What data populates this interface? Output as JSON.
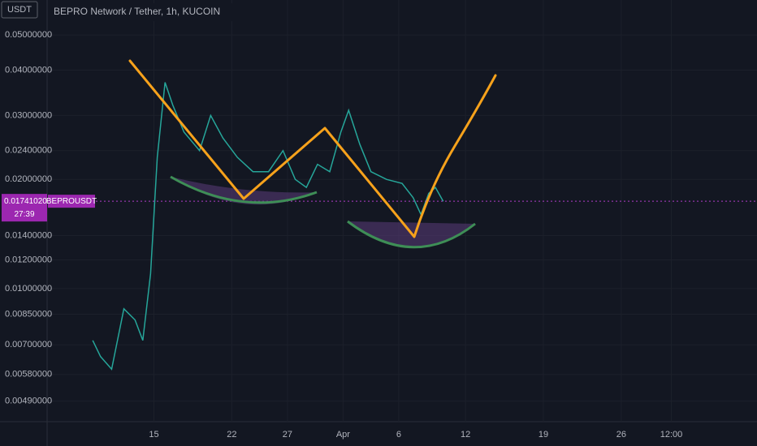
{
  "chart_data": {
    "type": "line",
    "title": "BEPRO Network / Tether, 1h, KUCOIN",
    "currency": "USDT",
    "log_scale": true,
    "color": "#26a69a",
    "x": [
      9.5,
      10.2,
      11.2,
      12.3,
      13.3,
      14.0,
      14.7,
      15.3,
      16.0,
      16.7,
      17.7,
      19.1,
      20.1,
      21.2,
      22.5,
      23.9,
      25.3,
      26.6,
      27.7,
      28.7,
      29.7,
      30.8,
      31.8,
      32.5,
      33.5,
      34.5,
      35.9,
      37.3,
      38.3,
      39.0,
      39.7,
      40.3,
      41.0
    ],
    "series": [
      {
        "name": "BEPROUSDT",
        "color": "#26a69a",
        "values": [
          0.0072,
          0.0065,
          0.006,
          0.0088,
          0.0082,
          0.0072,
          0.011,
          0.023,
          0.037,
          0.032,
          0.027,
          0.024,
          0.03,
          0.026,
          0.023,
          0.021,
          0.021,
          0.024,
          0.02,
          0.019,
          0.022,
          0.021,
          0.027,
          0.031,
          0.025,
          0.021,
          0.02,
          0.0195,
          0.0178,
          0.016,
          0.0183,
          0.019,
          0.0174
        ]
      }
    ],
    "ylim": [
      0.0043,
      0.0624
    ],
    "yticks": [
      {
        "value": 0.05,
        "label": "0.05000000"
      },
      {
        "value": 0.04,
        "label": "0.04000000"
      },
      {
        "value": 0.03,
        "label": "0.03000000"
      },
      {
        "value": 0.024,
        "label": "0.02400000"
      },
      {
        "value": 0.02,
        "label": "0.02000000"
      },
      {
        "value": 0.014,
        "label": "0.01400000"
      },
      {
        "value": 0.012,
        "label": "0.01200000"
      },
      {
        "value": 0.01,
        "label": "0.01000000"
      },
      {
        "value": 0.0085,
        "label": "0.00850000"
      },
      {
        "value": 0.007,
        "label": "0.00700000"
      },
      {
        "value": 0.0058,
        "label": "0.00580000"
      },
      {
        "value": 0.0049,
        "label": "0.00490000"
      }
    ],
    "xlim": [
      5.4,
      69.2
    ],
    "xticks": [
      {
        "value": 15,
        "label": "15"
      },
      {
        "value": 22,
        "label": "22"
      },
      {
        "value": 27,
        "label": "27"
      },
      {
        "value": 32,
        "label": "Apr"
      },
      {
        "value": 37,
        "label": "6"
      },
      {
        "value": 43,
        "label": "12"
      },
      {
        "value": 50,
        "label": "19"
      },
      {
        "value": 57,
        "label": "26"
      },
      {
        "value": 61.5,
        "label": "12:00"
      }
    ],
    "last_price": {
      "value": 0.0174102,
      "label": "0.01741020"
    },
    "symbol": "BEPROUSDT",
    "countdown": "27:39"
  }
}
